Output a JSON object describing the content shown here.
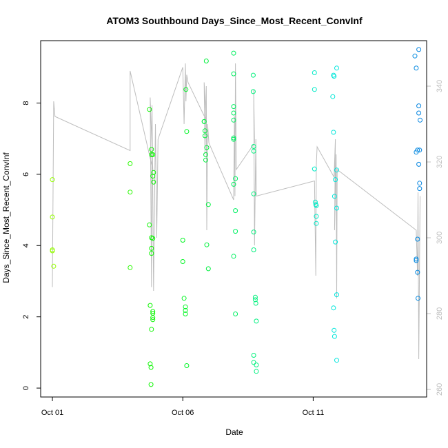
{
  "chart_data": {
    "type": "scatter",
    "title": "ATOM3 Southbound Days_Since_Most_Recent_ConvInf",
    "xlabel": "Date",
    "ylabel": "Days_Since_Most_Recent_ConvInf",
    "x_ticks": [
      {
        "x": 1.0,
        "label": "Oct 01"
      },
      {
        "x": 6.0,
        "label": "Oct 06"
      },
      {
        "x": 11.0,
        "label": "Oct 11"
      }
    ],
    "xlim": [
      0.55,
      15.35
    ],
    "ylim": [
      -0.25,
      9.75
    ],
    "y_ticks": [
      0,
      2,
      4,
      6,
      8
    ],
    "y2lim": [
      258,
      352
    ],
    "y2_ticks": [
      260,
      280,
      300,
      320,
      340
    ],
    "grid": false,
    "points": [
      {
        "x": 1.0,
        "y": 5.85
      },
      {
        "x": 1.0,
        "y": 4.8
      },
      {
        "x": 1.0,
        "y": 3.88
      },
      {
        "x": 1.0,
        "y": 3.85
      },
      {
        "x": 1.05,
        "y": 3.42
      },
      {
        "x": 3.98,
        "y": 6.3
      },
      {
        "x": 3.98,
        "y": 5.5
      },
      {
        "x": 3.98,
        "y": 3.38
      },
      {
        "x": 4.72,
        "y": 7.82
      },
      {
        "x": 4.72,
        "y": 4.58
      },
      {
        "x": 4.75,
        "y": 2.32
      },
      {
        "x": 4.75,
        "y": 0.68
      },
      {
        "x": 4.78,
        "y": 0.58
      },
      {
        "x": 4.78,
        "y": 0.1
      },
      {
        "x": 4.8,
        "y": 6.7
      },
      {
        "x": 4.8,
        "y": 6.55
      },
      {
        "x": 4.8,
        "y": 4.22
      },
      {
        "x": 4.8,
        "y": 3.92
      },
      {
        "x": 4.8,
        "y": 3.78
      },
      {
        "x": 4.8,
        "y": 1.65
      },
      {
        "x": 4.85,
        "y": 6.55
      },
      {
        "x": 4.85,
        "y": 5.95
      },
      {
        "x": 4.85,
        "y": 4.2
      },
      {
        "x": 4.85,
        "y": 2.15
      },
      {
        "x": 4.85,
        "y": 2.1
      },
      {
        "x": 4.85,
        "y": 1.98
      },
      {
        "x": 4.85,
        "y": 1.92
      },
      {
        "x": 4.88,
        "y": 6.05
      },
      {
        "x": 4.88,
        "y": 5.78
      },
      {
        "x": 6.0,
        "y": 4.15
      },
      {
        "x": 6.0,
        "y": 3.55
      },
      {
        "x": 6.05,
        "y": 2.52
      },
      {
        "x": 6.1,
        "y": 2.28
      },
      {
        "x": 6.1,
        "y": 2.18
      },
      {
        "x": 6.1,
        "y": 2.08
      },
      {
        "x": 6.12,
        "y": 8.38
      },
      {
        "x": 6.15,
        "y": 7.2
      },
      {
        "x": 6.15,
        "y": 0.63
      },
      {
        "x": 6.82,
        "y": 7.48
      },
      {
        "x": 6.82,
        "y": 7.48
      },
      {
        "x": 6.85,
        "y": 7.22
      },
      {
        "x": 6.85,
        "y": 7.08
      },
      {
        "x": 6.88,
        "y": 6.55
      },
      {
        "x": 6.88,
        "y": 6.4
      },
      {
        "x": 6.9,
        "y": 9.18
      },
      {
        "x": 6.92,
        "y": 6.75
      },
      {
        "x": 6.92,
        "y": 4.02
      },
      {
        "x": 6.98,
        "y": 5.15
      },
      {
        "x": 6.98,
        "y": 3.35
      },
      {
        "x": 7.95,
        "y": 9.4
      },
      {
        "x": 7.95,
        "y": 8.82
      },
      {
        "x": 7.95,
        "y": 7.9
      },
      {
        "x": 7.95,
        "y": 7.72
      },
      {
        "x": 7.95,
        "y": 7.52
      },
      {
        "x": 7.95,
        "y": 7.02
      },
      {
        "x": 7.95,
        "y": 6.98
      },
      {
        "x": 7.95,
        "y": 5.72
      },
      {
        "x": 7.95,
        "y": 3.7
      },
      {
        "x": 8.02,
        "y": 5.88
      },
      {
        "x": 8.02,
        "y": 4.4
      },
      {
        "x": 8.02,
        "y": 4.98
      },
      {
        "x": 8.02,
        "y": 2.08
      },
      {
        "x": 8.7,
        "y": 8.78
      },
      {
        "x": 8.7,
        "y": 8.32
      },
      {
        "x": 8.72,
        "y": 6.78
      },
      {
        "x": 8.72,
        "y": 6.65
      },
      {
        "x": 8.72,
        "y": 5.45
      },
      {
        "x": 8.72,
        "y": 4.38
      },
      {
        "x": 8.72,
        "y": 3.88
      },
      {
        "x": 8.72,
        "y": 0.92
      },
      {
        "x": 8.72,
        "y": 0.72
      },
      {
        "x": 8.78,
        "y": 2.55
      },
      {
        "x": 8.78,
        "y": 2.48
      },
      {
        "x": 8.8,
        "y": 2.38
      },
      {
        "x": 8.82,
        "y": 1.88
      },
      {
        "x": 8.82,
        "y": 0.65
      },
      {
        "x": 8.82,
        "y": 0.47
      },
      {
        "x": 11.05,
        "y": 8.85
      },
      {
        "x": 11.05,
        "y": 8.38
      },
      {
        "x": 11.05,
        "y": 6.15
      },
      {
        "x": 11.08,
        "y": 5.22
      },
      {
        "x": 11.1,
        "y": 5.15
      },
      {
        "x": 11.12,
        "y": 5.12
      },
      {
        "x": 11.12,
        "y": 4.82
      },
      {
        "x": 11.12,
        "y": 4.62
      },
      {
        "x": 11.75,
        "y": 8.18
      },
      {
        "x": 11.78,
        "y": 8.78
      },
      {
        "x": 11.8,
        "y": 8.75
      },
      {
        "x": 11.78,
        "y": 7.18
      },
      {
        "x": 11.78,
        "y": 2.25
      },
      {
        "x": 11.8,
        "y": 1.62
      },
      {
        "x": 11.82,
        "y": 1.45
      },
      {
        "x": 11.82,
        "y": 5.38
      },
      {
        "x": 11.85,
        "y": 5.85
      },
      {
        "x": 11.85,
        "y": 4.1
      },
      {
        "x": 11.9,
        "y": 8.98
      },
      {
        "x": 11.9,
        "y": 6.12
      },
      {
        "x": 11.9,
        "y": 5.05
      },
      {
        "x": 11.9,
        "y": 2.62
      },
      {
        "x": 11.9,
        "y": 0.78
      },
      {
        "x": 14.9,
        "y": 9.32
      },
      {
        "x": 14.95,
        "y": 8.98
      },
      {
        "x": 14.95,
        "y": 6.62
      },
      {
        "x": 15.0,
        "y": 6.68
      },
      {
        "x": 14.95,
        "y": 3.62
      },
      {
        "x": 14.95,
        "y": 3.58
      },
      {
        "x": 15.0,
        "y": 4.18
      },
      {
        "x": 15.0,
        "y": 3.25
      },
      {
        "x": 15.02,
        "y": 2.52
      },
      {
        "x": 15.05,
        "y": 9.5
      },
      {
        "x": 15.05,
        "y": 7.92
      },
      {
        "x": 15.05,
        "y": 7.72
      },
      {
        "x": 15.08,
        "y": 6.68
      },
      {
        "x": 15.08,
        "y": 5.75
      },
      {
        "x": 15.08,
        "y": 5.6
      },
      {
        "x": 15.1,
        "y": 7.52
      },
      {
        "x": 15.05,
        "y": 6.28
      }
    ],
    "line_series": [
      {
        "x": 1.0,
        "y2": 287
      },
      {
        "x": 1.05,
        "y2": 336
      },
      {
        "x": 1.1,
        "y2": 332
      },
      {
        "x": 3.98,
        "y2": 323
      },
      {
        "x": 3.98,
        "y2": 344
      },
      {
        "x": 4.85,
        "y2": 318
      },
      {
        "x": 4.75,
        "y2": 337
      },
      {
        "x": 4.8,
        "y2": 287
      },
      {
        "x": 4.82,
        "y2": 335
      },
      {
        "x": 4.88,
        "y2": 286
      },
      {
        "x": 4.95,
        "y2": 330
      },
      {
        "x": 5.0,
        "y2": 300
      },
      {
        "x": 5.05,
        "y2": 326
      },
      {
        "x": 6.0,
        "y2": 345
      },
      {
        "x": 6.05,
        "y2": 330
      },
      {
        "x": 6.1,
        "y2": 346
      },
      {
        "x": 6.12,
        "y2": 336
      },
      {
        "x": 6.15,
        "y2": 343
      },
      {
        "x": 6.2,
        "y2": 341
      },
      {
        "x": 6.9,
        "y2": 331
      },
      {
        "x": 6.82,
        "y2": 341
      },
      {
        "x": 6.85,
        "y2": 322
      },
      {
        "x": 6.9,
        "y2": 340
      },
      {
        "x": 6.92,
        "y2": 302
      },
      {
        "x": 6.95,
        "y2": 330
      },
      {
        "x": 7.0,
        "y2": 325
      },
      {
        "x": 7.95,
        "y2": 310
      },
      {
        "x": 7.98,
        "y2": 332
      },
      {
        "x": 8.0,
        "y2": 311
      },
      {
        "x": 8.02,
        "y2": 346
      },
      {
        "x": 8.05,
        "y2": 318
      },
      {
        "x": 8.75,
        "y2": 325
      },
      {
        "x": 8.72,
        "y2": 339
      },
      {
        "x": 8.75,
        "y2": 298
      },
      {
        "x": 8.8,
        "y2": 326
      },
      {
        "x": 8.82,
        "y2": 311
      },
      {
        "x": 11.05,
        "y2": 315
      },
      {
        "x": 11.1,
        "y2": 290
      },
      {
        "x": 11.12,
        "y2": 319
      },
      {
        "x": 11.15,
        "y2": 324
      },
      {
        "x": 11.8,
        "y2": 316
      },
      {
        "x": 11.85,
        "y2": 326
      },
      {
        "x": 11.82,
        "y2": 302
      },
      {
        "x": 11.88,
        "y2": 322
      },
      {
        "x": 11.9,
        "y2": 284
      },
      {
        "x": 11.92,
        "y2": 318
      },
      {
        "x": 14.95,
        "y2": 302
      },
      {
        "x": 15.0,
        "y2": 290
      },
      {
        "x": 15.02,
        "y2": 312
      },
      {
        "x": 15.05,
        "y2": 268
      },
      {
        "x": 15.1,
        "y2": 311
      }
    ]
  }
}
